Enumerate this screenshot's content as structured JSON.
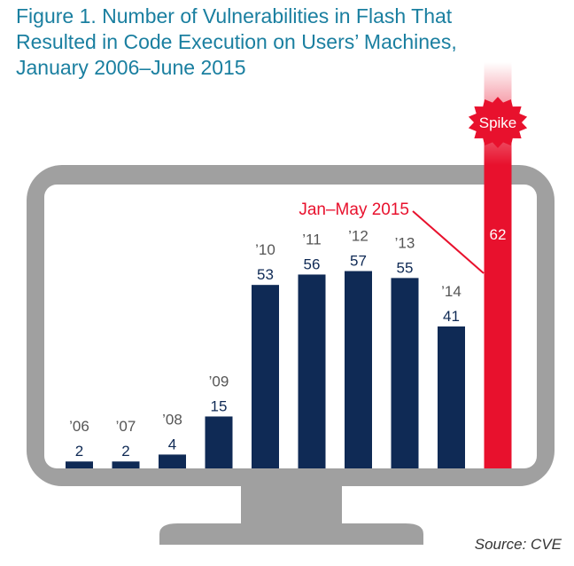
{
  "title": "Figure 1. Number of Vulnerabilities in Flash That Resulted in Code Execution on Users’ Machines, January 2006–June 2015",
  "source": "Source: CVE",
  "colors": {
    "bar": "#0f2a55",
    "highlight": "#e8112d",
    "monitor": "#a0a0a0",
    "title": "#1a7fa0",
    "year_label": "#555555"
  },
  "chart_data": {
    "type": "bar",
    "title": "Figure 1. Number of Vulnerabilities in Flash That Resulted in Code Execution on Users’ Machines, January 2006–June 2015",
    "categories": [
      "’06",
      "’07",
      "’08",
      "’09",
      "’10",
      "’11",
      "’12",
      "’13",
      "’14",
      ""
    ],
    "values": [
      2,
      2,
      4,
      15,
      53,
      56,
      57,
      55,
      41,
      62
    ],
    "highlight_index": 9,
    "annotations": {
      "spike": "Spike",
      "jan_may": "Jan–May 2015"
    },
    "xlabel": "",
    "ylabel": "",
    "ylim": [
      0,
      62
    ],
    "grid": false,
    "legend": "none"
  }
}
